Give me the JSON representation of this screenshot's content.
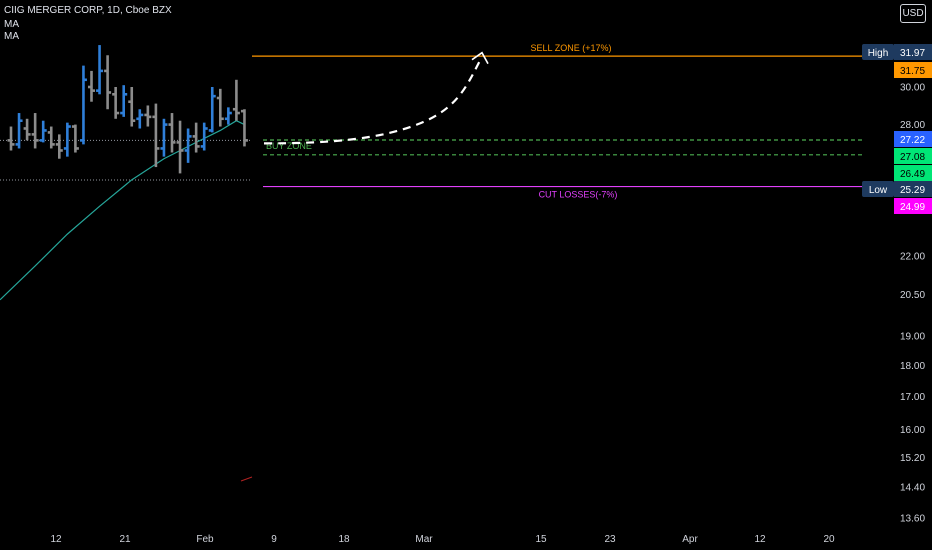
{
  "header": {
    "title": "CIIG MERGER CORP, 1D, Cboe BZX",
    "indicators": [
      "MA",
      "MA"
    ],
    "currency": "USD"
  },
  "chart_data": {
    "type": "ohlc",
    "y_axis": {
      "scale": "log",
      "ticks": [
        "30.00",
        "28.00",
        "22.00",
        "20.50",
        "19.00",
        "18.00",
        "17.00",
        "16.00",
        "15.20",
        "14.40",
        "13.60"
      ]
    },
    "x_axis": {
      "ticks": [
        "12",
        "21",
        "Feb",
        "9",
        "18",
        "Mar",
        "15",
        "23",
        "Apr",
        "12",
        "20"
      ]
    },
    "bars_note": "daily OHLC bars, prices read off the log axis",
    "bars": [
      {
        "o": 27.2,
        "h": 27.9,
        "l": 26.7,
        "c": 27.0,
        "dir": "down"
      },
      {
        "o": 27.0,
        "h": 28.6,
        "l": 26.8,
        "c": 28.2,
        "dir": "up"
      },
      {
        "o": 27.8,
        "h": 28.3,
        "l": 27.2,
        "c": 27.5,
        "dir": "down"
      },
      {
        "o": 27.5,
        "h": 28.6,
        "l": 26.8,
        "c": 27.2,
        "dir": "down"
      },
      {
        "o": 27.2,
        "h": 28.2,
        "l": 27.1,
        "c": 27.7,
        "dir": "up"
      },
      {
        "o": 27.6,
        "h": 27.9,
        "l": 26.8,
        "c": 27.0,
        "dir": "down"
      },
      {
        "o": 27.0,
        "h": 27.5,
        "l": 26.3,
        "c": 26.7,
        "dir": "down"
      },
      {
        "o": 26.8,
        "h": 28.1,
        "l": 26.4,
        "c": 27.9,
        "dir": "up"
      },
      {
        "o": 27.9,
        "h": 28.0,
        "l": 26.6,
        "c": 26.8,
        "dir": "down"
      },
      {
        "o": 27.2,
        "h": 31.2,
        "l": 27.0,
        "c": 30.4,
        "dir": "up"
      },
      {
        "o": 30.0,
        "h": 30.9,
        "l": 29.2,
        "c": 29.8,
        "dir": "down"
      },
      {
        "o": 29.8,
        "h": 32.4,
        "l": 29.6,
        "c": 30.9,
        "dir": "up"
      },
      {
        "o": 30.9,
        "h": 31.8,
        "l": 28.8,
        "c": 29.7,
        "dir": "down"
      },
      {
        "o": 29.6,
        "h": 30.0,
        "l": 28.3,
        "c": 28.6,
        "dir": "down"
      },
      {
        "o": 28.6,
        "h": 30.1,
        "l": 28.4,
        "c": 29.6,
        "dir": "up"
      },
      {
        "o": 29.2,
        "h": 30.0,
        "l": 27.9,
        "c": 28.2,
        "dir": "down"
      },
      {
        "o": 28.3,
        "h": 28.8,
        "l": 27.8,
        "c": 28.5,
        "dir": "up"
      },
      {
        "o": 28.5,
        "h": 29.0,
        "l": 27.9,
        "c": 28.4,
        "dir": "down"
      },
      {
        "o": 28.4,
        "h": 29.1,
        "l": 25.9,
        "c": 26.8,
        "dir": "down"
      },
      {
        "o": 26.8,
        "h": 28.3,
        "l": 26.4,
        "c": 28.0,
        "dir": "up"
      },
      {
        "o": 28.0,
        "h": 28.6,
        "l": 26.6,
        "c": 27.1,
        "dir": "down"
      },
      {
        "o": 27.1,
        "h": 28.2,
        "l": 25.6,
        "c": 26.7,
        "dir": "down"
      },
      {
        "o": 26.7,
        "h": 27.8,
        "l": 26.1,
        "c": 27.4,
        "dir": "up"
      },
      {
        "o": 27.4,
        "h": 28.1,
        "l": 26.6,
        "c": 26.9,
        "dir": "down"
      },
      {
        "o": 26.9,
        "h": 28.1,
        "l": 26.7,
        "c": 27.8,
        "dir": "up"
      },
      {
        "o": 27.7,
        "h": 30.0,
        "l": 27.6,
        "c": 29.5,
        "dir": "up"
      },
      {
        "o": 29.4,
        "h": 29.9,
        "l": 27.9,
        "c": 28.3,
        "dir": "down"
      },
      {
        "o": 28.3,
        "h": 28.9,
        "l": 28.0,
        "c": 28.6,
        "dir": "up"
      },
      {
        "o": 28.8,
        "h": 30.4,
        "l": 28.2,
        "c": 28.6,
        "dir": "down"
      },
      {
        "o": 28.7,
        "h": 28.8,
        "l": 26.9,
        "c": 27.2,
        "dir": "down"
      }
    ],
    "moving_average": [
      {
        "bar": -1,
        "value": 20.3
      },
      {
        "bar": 3,
        "value": 21.6
      },
      {
        "bar": 7,
        "value": 22.9
      },
      {
        "bar": 11,
        "value": 24.1
      },
      {
        "bar": 15,
        "value": 25.3
      },
      {
        "bar": 19,
        "value": 26.3
      },
      {
        "bar": 23,
        "value": 27.1
      },
      {
        "bar": 26,
        "value": 27.7
      },
      {
        "bar": 28,
        "value": 28.2
      },
      {
        "bar": 29,
        "value": 28.0
      }
    ],
    "levels": [
      {
        "name": "SELL ZONE (+17%)",
        "price": 31.75,
        "color": "#ff9800"
      },
      {
        "name": "BUY ZONE",
        "price": 27.22,
        "color": "#4caf50",
        "style": "dashed"
      },
      {
        "name": "",
        "price": 26.49,
        "color": "#4caf50",
        "style": "dashed"
      },
      {
        "name": "CUT LOSSES(-7%)",
        "price": 24.99,
        "color": "#e040fb"
      }
    ],
    "dotted_ref_lines": [
      27.2,
      25.29
    ],
    "price_tags": [
      {
        "label": "High",
        "value": "31.97",
        "bg": "#1e3a5f",
        "fg": "#ffffff"
      },
      {
        "label": "",
        "value": "31.75",
        "bg": "#ff9800",
        "fg": "#000000"
      },
      {
        "label": "",
        "value": "27.22",
        "bg": "#2962ff",
        "fg": "#ffffff"
      },
      {
        "label": "",
        "value": "27.08",
        "bg": "#00e676",
        "fg": "#000000"
      },
      {
        "label": "",
        "value": "26.49",
        "bg": "#00e676",
        "fg": "#000000"
      },
      {
        "label": "Low",
        "value": "25.29",
        "bg": "#1e3a5f",
        "fg": "#ffffff"
      },
      {
        "label": "",
        "value": "24.99",
        "bg": "#ff00ff",
        "fg": "#ffffff"
      }
    ],
    "projection": {
      "from_price": 27.05,
      "to_price": 31.95,
      "color": "#ffffff",
      "style": "dashed",
      "arrow": true
    },
    "colors": {
      "up": "#2f7fd9",
      "down": "#8c8c8c",
      "ma": "#26a69a",
      "background": "#000000"
    }
  }
}
